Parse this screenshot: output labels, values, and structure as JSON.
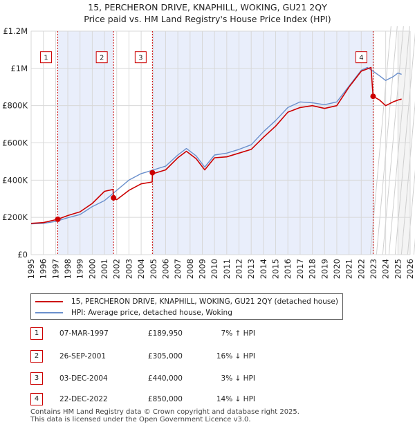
{
  "header": {
    "title_line1": "15, PERCHERON DRIVE, KNAPHILL, WOKING, GU21 2QY",
    "title_line2": "Price paid vs. HM Land Registry's House Price Index (HPI)"
  },
  "legend": {
    "items": [
      {
        "label": "15, PERCHERON DRIVE, KNAPHILL, WOKING, GU21 2QY (detached house)",
        "color": "#cc0000"
      },
      {
        "label": "HPI: Average price, detached house, Woking",
        "color": "#6a8fcc"
      }
    ]
  },
  "transactions": [
    {
      "num": "1",
      "date": "07-MAR-1997",
      "price": "£189,950",
      "hpi": "7% ↑ HPI"
    },
    {
      "num": "2",
      "date": "26-SEP-2001",
      "price": "£305,000",
      "hpi": "16% ↓ HPI"
    },
    {
      "num": "3",
      "date": "03-DEC-2004",
      "price": "£440,000",
      "hpi": "3% ↓ HPI"
    },
    {
      "num": "4",
      "date": "22-DEC-2022",
      "price": "£850,000",
      "hpi": "14% ↓ HPI"
    }
  ],
  "footer": {
    "line1": "Contains HM Land Registry data © Crown copyright and database right 2025.",
    "line2": "This data is licensed under the Open Government Licence v3.0."
  },
  "chart_data": {
    "type": "line",
    "title": "15, PERCHERON DRIVE, KNAPHILL, WOKING, GU21 2QY",
    "subtitle": "Price paid vs. HM Land Registry's House Price Index (HPI)",
    "xlim": [
      1995,
      2026
    ],
    "ylim": [
      0,
      1200000
    ],
    "x_ticks": [
      1995,
      1996,
      1997,
      1998,
      1999,
      2000,
      2001,
      2002,
      2003,
      2004,
      2005,
      2006,
      2007,
      2008,
      2009,
      2010,
      2011,
      2012,
      2013,
      2014,
      2015,
      2016,
      2017,
      2018,
      2019,
      2020,
      2021,
      2022,
      2023,
      2024,
      2025,
      2026
    ],
    "y_ticks": [
      {
        "value": 0,
        "label": "£0"
      },
      {
        "value": 200000,
        "label": "£200K"
      },
      {
        "value": 400000,
        "label": "£400K"
      },
      {
        "value": 600000,
        "label": "£600K"
      },
      {
        "value": 800000,
        "label": "£800K"
      },
      {
        "value": 1000000,
        "label": "£1M"
      },
      {
        "value": 1200000,
        "label": "£1.2M"
      }
    ],
    "grid": true,
    "forecast_start": 2025.0,
    "sale_markers": [
      {
        "label": "1",
        "x": 1997.18,
        "y": 189950
      },
      {
        "label": "2",
        "x": 2001.74,
        "y": 305000
      },
      {
        "label": "3",
        "x": 2004.92,
        "y": 440000
      },
      {
        "label": "4",
        "x": 2022.97,
        "y": 850000
      }
    ],
    "marker_box_value": 1060000,
    "series": [
      {
        "name": "HPI: Average price, detached house, Woking",
        "color": "#6a8fcc",
        "points": [
          [
            1995,
            165000
          ],
          [
            1996,
            168000
          ],
          [
            1997,
            178000
          ],
          [
            1998,
            198000
          ],
          [
            1999,
            215000
          ],
          [
            2000,
            258000
          ],
          [
            2001,
            290000
          ],
          [
            2002,
            345000
          ],
          [
            2003,
            400000
          ],
          [
            2004,
            435000
          ],
          [
            2004.92,
            453000
          ],
          [
            2005,
            455000
          ],
          [
            2006,
            475000
          ],
          [
            2007,
            535000
          ],
          [
            2007.7,
            570000
          ],
          [
            2008.5,
            530000
          ],
          [
            2009.2,
            470000
          ],
          [
            2010,
            535000
          ],
          [
            2011,
            545000
          ],
          [
            2012,
            565000
          ],
          [
            2013,
            590000
          ],
          [
            2014,
            660000
          ],
          [
            2015,
            720000
          ],
          [
            2016,
            790000
          ],
          [
            2017,
            820000
          ],
          [
            2018,
            815000
          ],
          [
            2019,
            805000
          ],
          [
            2020,
            820000
          ],
          [
            2021,
            905000
          ],
          [
            2022,
            990000
          ],
          [
            2022.5,
            1005000
          ],
          [
            2022.97,
            985000
          ],
          [
            2023.5,
            960000
          ],
          [
            2024,
            935000
          ],
          [
            2024.6,
            955000
          ],
          [
            2025,
            975000
          ],
          [
            2025.3,
            968000
          ]
        ]
      },
      {
        "name": "15, PERCHERON DRIVE, KNAPHILL, WOKING, GU21 2QY (detached house)",
        "color": "#cc0000",
        "points": [
          [
            1995,
            168000
          ],
          [
            1996,
            172000
          ],
          [
            1997.18,
            189950
          ],
          [
            1998,
            210000
          ],
          [
            1999,
            230000
          ],
          [
            2000,
            275000
          ],
          [
            2001,
            340000
          ],
          [
            2001.7,
            350000
          ],
          [
            2001.74,
            305000
          ],
          [
            2002,
            295000
          ],
          [
            2003,
            345000
          ],
          [
            2004,
            380000
          ],
          [
            2004.9,
            390000
          ],
          [
            2004.92,
            440000
          ],
          [
            2005,
            435000
          ],
          [
            2006,
            455000
          ],
          [
            2007,
            520000
          ],
          [
            2007.7,
            555000
          ],
          [
            2008.5,
            515000
          ],
          [
            2009.2,
            455000
          ],
          [
            2010,
            520000
          ],
          [
            2011,
            525000
          ],
          [
            2012,
            545000
          ],
          [
            2013,
            565000
          ],
          [
            2014,
            630000
          ],
          [
            2015,
            690000
          ],
          [
            2016,
            765000
          ],
          [
            2017,
            790000
          ],
          [
            2018,
            800000
          ],
          [
            2019,
            785000
          ],
          [
            2020,
            800000
          ],
          [
            2021,
            900000
          ],
          [
            2022,
            985000
          ],
          [
            2022.8,
            1005000
          ],
          [
            2022.97,
            850000
          ],
          [
            2023.5,
            830000
          ],
          [
            2024,
            800000
          ],
          [
            2024.6,
            820000
          ],
          [
            2025,
            830000
          ],
          [
            2025.3,
            835000
          ]
        ]
      }
    ]
  }
}
